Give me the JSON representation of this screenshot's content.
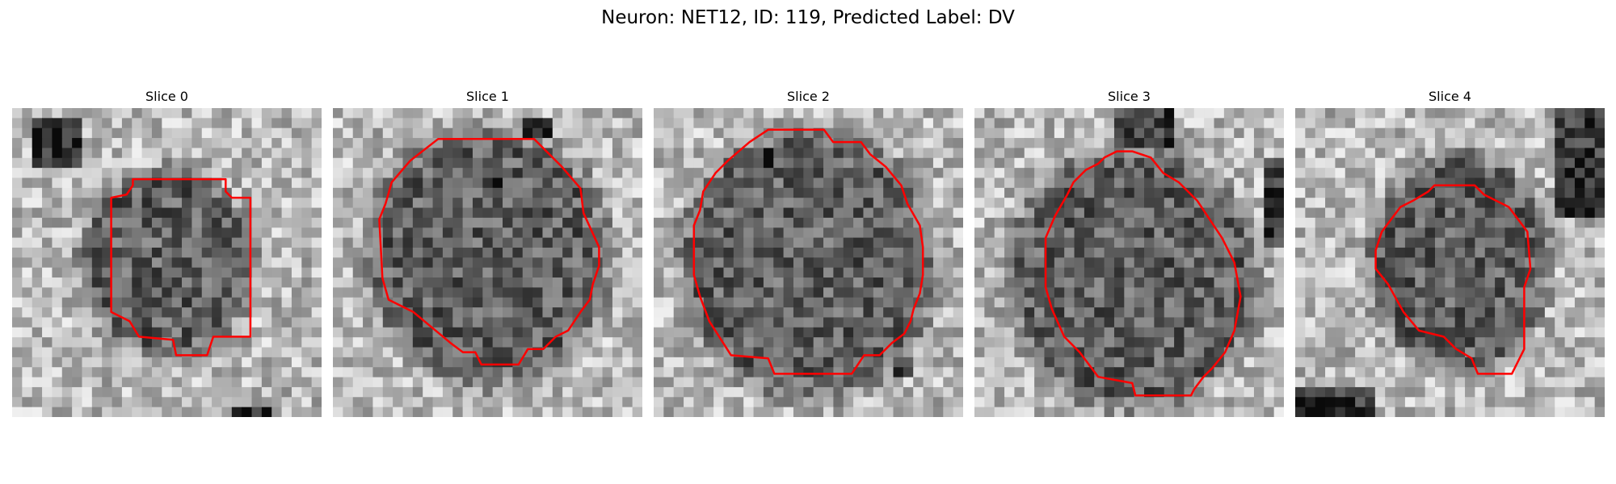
{
  "figure": {
    "title": "Neuron: NET12, ID: 119, Predicted Label: DV"
  },
  "slices": [
    {
      "title": "Slice 0"
    },
    {
      "title": "Slice 1"
    },
    {
      "title": "Slice 2"
    },
    {
      "title": "Slice 3"
    },
    {
      "title": "Slice 4"
    }
  ],
  "colors": {
    "contour": "#ff0000",
    "background": "#ffffff",
    "text": "#000000"
  }
}
